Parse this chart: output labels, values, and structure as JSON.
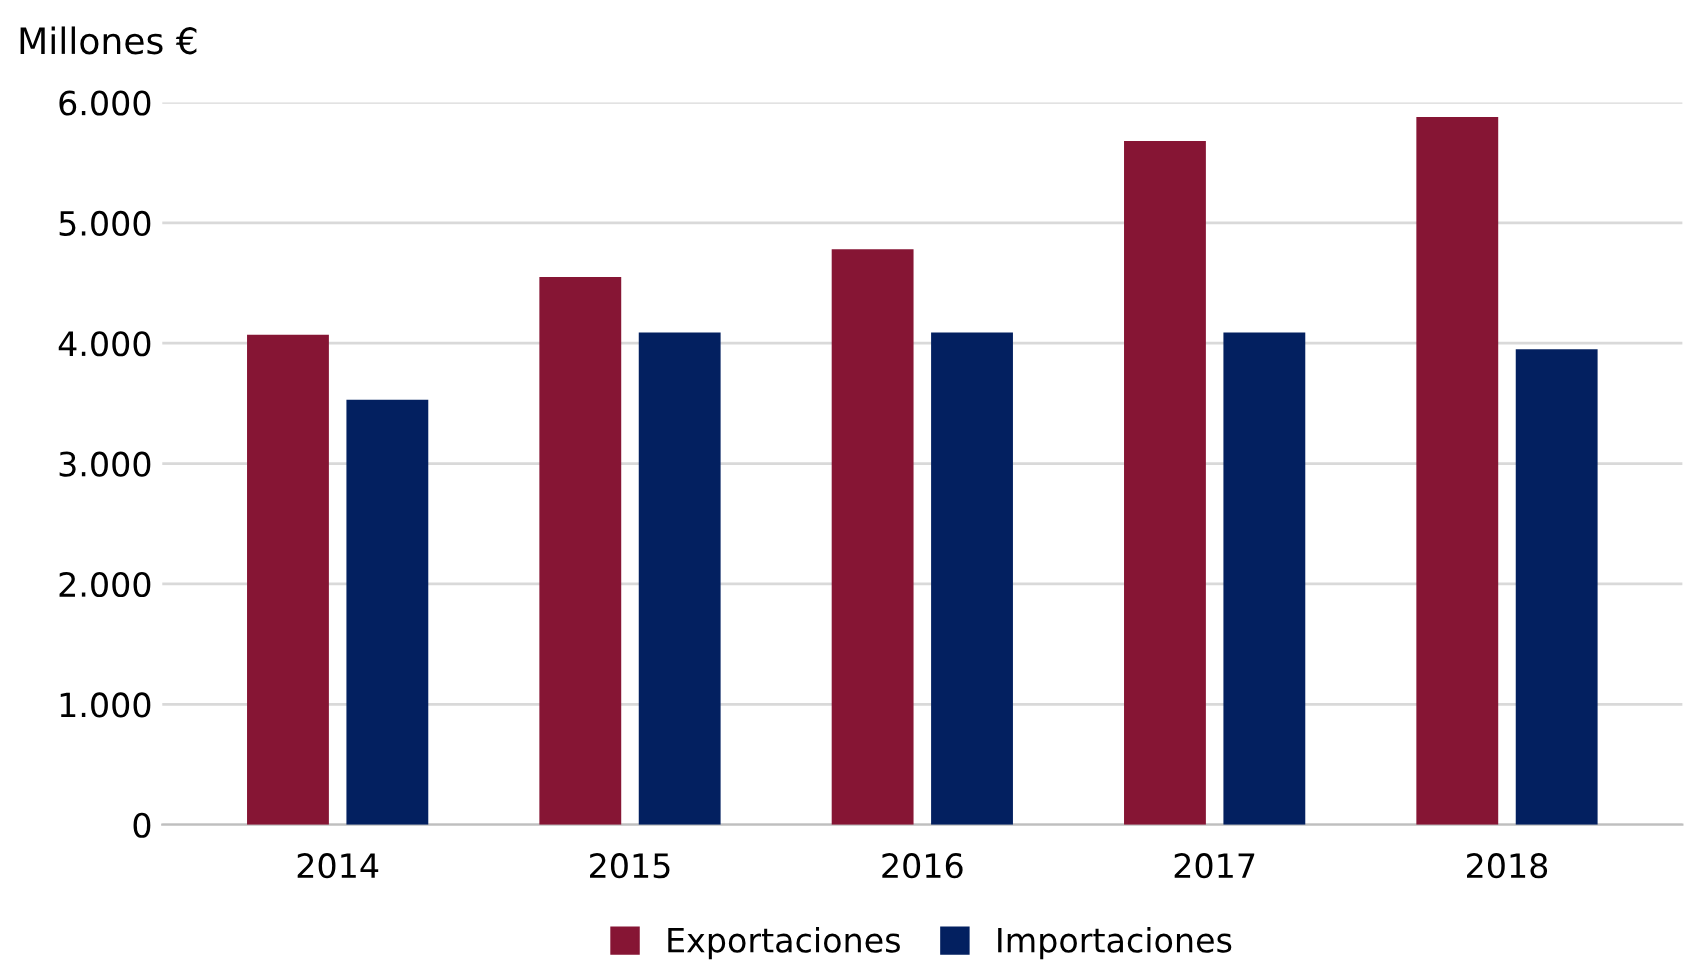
{
  "chart_data": {
    "type": "bar",
    "ylabel": "Millones €",
    "categories": [
      "2014",
      "2015",
      "2016",
      "2017",
      "2018"
    ],
    "series": [
      {
        "name": "Exportaciones",
        "color": "#861534",
        "values": [
          4070,
          4550,
          4780,
          5680,
          5880
        ]
      },
      {
        "name": "Importaciones",
        "color": "#032060",
        "values": [
          3530,
          4090,
          4090,
          4090,
          3950
        ]
      }
    ],
    "ylim": [
      0,
      6000
    ],
    "yticks": [
      0,
      {
        "value": 1000,
        "label": "1.000"
      },
      {
        "value": 2000,
        "label": "2.000"
      },
      {
        "value": 3000,
        "label": "3.000"
      },
      {
        "value": 4000,
        "label": "4.000"
      },
      {
        "value": 5000,
        "label": "5.000"
      },
      {
        "value": 6000,
        "label": "6.000"
      }
    ],
    "grid": "y",
    "legend": "bottom"
  }
}
